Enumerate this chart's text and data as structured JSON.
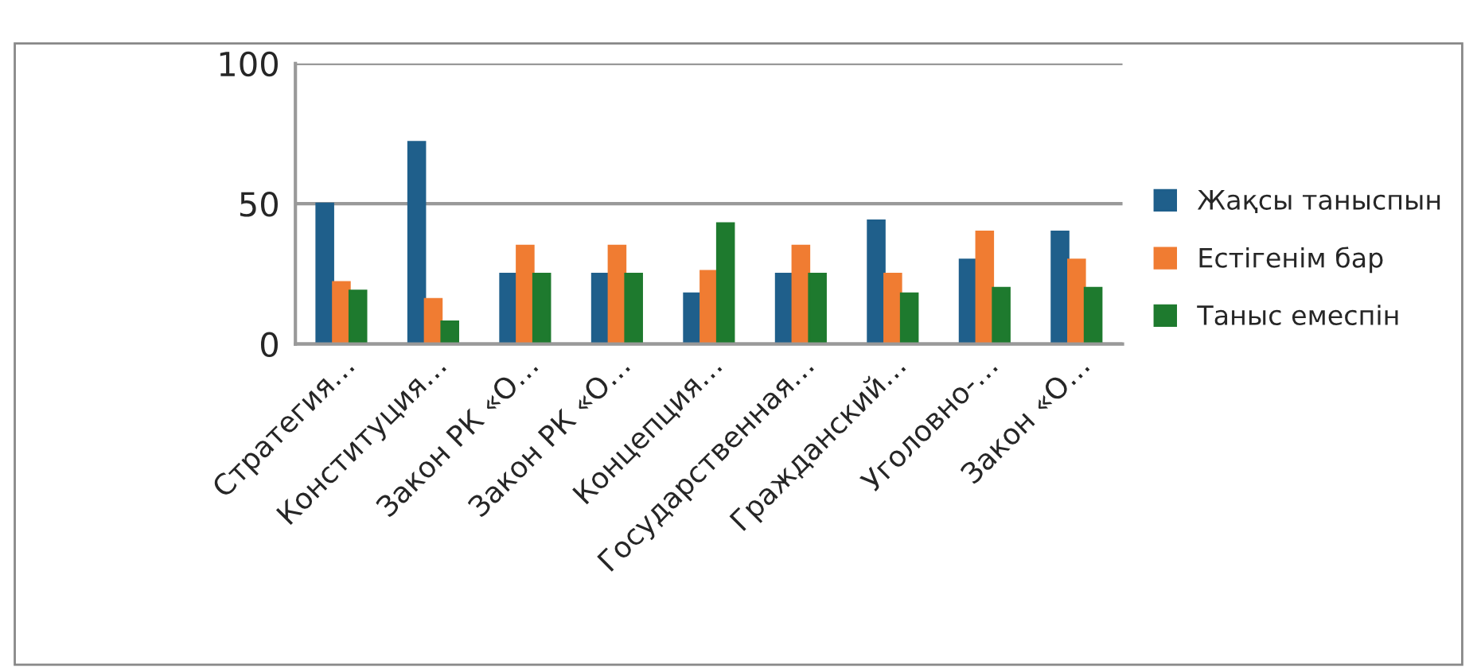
{
  "chart_data": {
    "type": "bar",
    "categories": [
      "Стратегия…",
      "Конституция…",
      "Закон РК «О…",
      "Закон РК «О…",
      "Концепция…",
      "Государственная…",
      "Гражданский…",
      "Уголовно-…",
      "Закон «О…"
    ],
    "series": [
      {
        "name": "Жақсы таныспын",
        "color": "#1f5f8b",
        "values": [
          50,
          72,
          25,
          25,
          18,
          25,
          44,
          30,
          40
        ]
      },
      {
        "name": "Естігенім бар",
        "color": "#f07c32",
        "values": [
          22,
          16,
          35,
          35,
          26,
          35,
          25,
          40,
          30
        ]
      },
      {
        "name": "Таныс емеспін",
        "color": "#1e7a2e",
        "values": [
          19,
          8,
          25,
          25,
          43,
          25,
          18,
          20,
          20
        ]
      }
    ],
    "ylim": [
      0,
      100
    ],
    "yticks": [
      0,
      50,
      100
    ],
    "grid": "y",
    "legend": "right"
  }
}
